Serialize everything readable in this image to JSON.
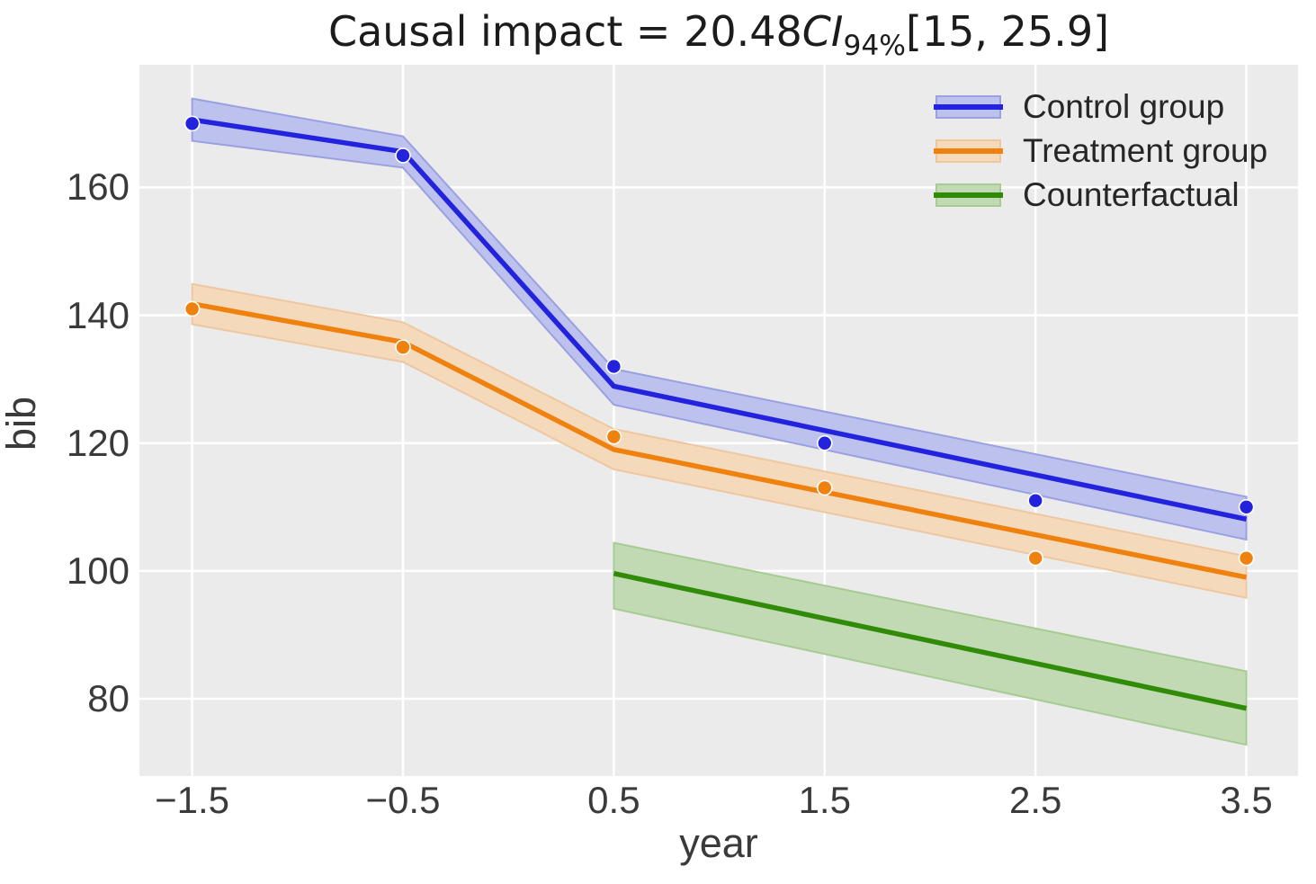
{
  "title": {
    "prefix": "Causal impact = 20.48",
    "ci_label": "CI",
    "ci_sub": "94%",
    "interval": "[15, 25.9]"
  },
  "chart_data": {
    "type": "line",
    "title": "Causal impact = 20.48 CI94% [15, 25.9]",
    "xlabel": "year",
    "ylabel": "bib",
    "xlim": [
      -1.75,
      3.745
    ],
    "ylim": [
      67.9,
      179.2
    ],
    "grid": true,
    "legend_position": "upper right",
    "xticks": {
      "values": [
        -1.5,
        -0.5,
        0.5,
        1.5,
        2.5,
        3.5
      ],
      "labels": [
        "−1.5",
        "−0.5",
        "0.5",
        "1.5",
        "2.5",
        "3.5"
      ]
    },
    "yticks": {
      "values": [
        80,
        100,
        120,
        140,
        160
      ],
      "labels": [
        "80",
        "100",
        "120",
        "140",
        "160"
      ]
    },
    "series": [
      {
        "name": "Control group",
        "color": "#2323dd",
        "band_fill": "#bdc1ee",
        "band_edge": "#9aa0e0",
        "line": {
          "x": [
            -1.5,
            -0.5,
            0.5,
            3.5
          ],
          "y": [
            170.6,
            165.6,
            128.9,
            108.1
          ]
        },
        "band": {
          "x": [
            -1.5,
            -0.5,
            0.5,
            3.5
          ],
          "upper": [
            173.9,
            168.0,
            131.6,
            111.6
          ],
          "lower": [
            167.3,
            163.1,
            126.0,
            104.9
          ]
        },
        "scatter": {
          "x": [
            -1.5,
            -0.5,
            0.5,
            1.5,
            2.5,
            3.5
          ],
          "y": [
            170,
            165,
            132,
            120,
            111,
            110
          ]
        }
      },
      {
        "name": "Treatment group",
        "color": "#ef820f",
        "band_fill": "#f5d9bb",
        "band_edge": "#eec79f",
        "line": {
          "x": [
            -1.5,
            -0.5,
            0.5,
            3.5
          ],
          "y": [
            141.8,
            135.8,
            119.0,
            99.0
          ]
        },
        "band": {
          "x": [
            -1.5,
            -0.5,
            0.5,
            3.5
          ],
          "upper": [
            144.9,
            138.9,
            122.2,
            102.3
          ],
          "lower": [
            138.6,
            132.7,
            115.9,
            95.8
          ]
        },
        "scatter": {
          "x": [
            -1.5,
            -0.5,
            0.5,
            1.5,
            2.5,
            3.5
          ],
          "y": [
            141,
            135,
            121,
            113,
            102,
            102
          ]
        }
      },
      {
        "name": "Counterfactual",
        "color": "#2f8b08",
        "band_fill": "#c2dab3",
        "band_edge": "#a6cb93",
        "line": {
          "x": [
            0.5,
            3.5
          ],
          "y": [
            99.6,
            78.5
          ]
        },
        "band": {
          "x": [
            0.5,
            3.5
          ],
          "upper": [
            104.4,
            84.3
          ],
          "lower": [
            94.1,
            72.8
          ]
        },
        "scatter": null
      }
    ]
  },
  "colors": {
    "figure_bg": "#ffffff",
    "axes_bg": "#ebebeb",
    "grid": "#ffffff",
    "tick_text": "#3a3a3a",
    "title_text": "#1c1c1c",
    "legend_text": "#262626",
    "scatter_edge": "#ffffff"
  }
}
